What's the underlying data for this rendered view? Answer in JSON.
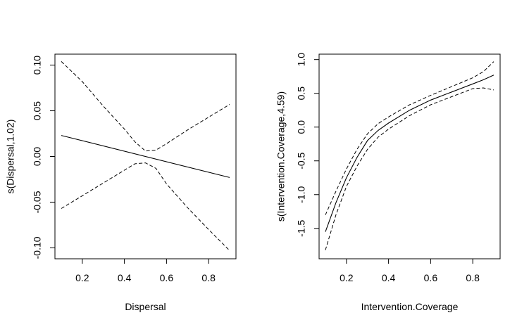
{
  "chart_data": [
    {
      "type": "line",
      "xlabel": "Dispersal",
      "ylabel": "s(Dispersal,1.02)",
      "xlim": [
        0.07,
        0.93
      ],
      "ylim": [
        -0.112,
        0.112
      ],
      "xticks": [
        0.2,
        0.4,
        0.6,
        0.8
      ],
      "xtick_labels": [
        "0.2",
        "0.4",
        "0.6",
        "0.8"
      ],
      "yticks": [
        -0.1,
        -0.05,
        0.0,
        0.05,
        0.1
      ],
      "ytick_labels": [
        "-0.10",
        "-0.05",
        "0.00",
        "0.05",
        "0.10"
      ],
      "series": [
        {
          "style": "solid",
          "x": [
            0.1,
            0.9
          ],
          "y": [
            0.023,
            -0.023
          ]
        },
        {
          "style": "dashed",
          "x": [
            0.1,
            0.2,
            0.3,
            0.4,
            0.45,
            0.5,
            0.55,
            0.6,
            0.7,
            0.8,
            0.9
          ],
          "y": [
            0.104,
            0.082,
            0.055,
            0.03,
            0.016,
            0.006,
            0.007,
            0.014,
            0.029,
            0.043,
            0.057
          ]
        },
        {
          "style": "dashed",
          "x": [
            0.1,
            0.2,
            0.3,
            0.4,
            0.45,
            0.5,
            0.55,
            0.6,
            0.7,
            0.8,
            0.9
          ],
          "y": [
            -0.057,
            -0.043,
            -0.029,
            -0.015,
            -0.008,
            -0.007,
            -0.013,
            -0.03,
            -0.056,
            -0.08,
            -0.103
          ]
        }
      ],
      "grid": false
    },
    {
      "type": "line",
      "xlabel": "Intervention.Coverage",
      "ylabel": "s(Intervention.Coverage,4.59)",
      "xlim": [
        0.07,
        0.93
      ],
      "ylim": [
        -1.95,
        1.08
      ],
      "xticks": [
        0.2,
        0.4,
        0.6,
        0.8
      ],
      "xtick_labels": [
        "0.2",
        "0.4",
        "0.6",
        "0.8"
      ],
      "yticks": [
        -1.5,
        -1.0,
        -0.5,
        0.0,
        0.5,
        1.0
      ],
      "ytick_labels": [
        "-1.5",
        "-1.0",
        "-0.5",
        "0.0",
        "0.5",
        "1.0"
      ],
      "series": [
        {
          "style": "solid",
          "x": [
            0.1,
            0.15,
            0.2,
            0.25,
            0.3,
            0.35,
            0.4,
            0.5,
            0.6,
            0.7,
            0.8,
            0.85,
            0.9
          ],
          "y": [
            -1.55,
            -1.12,
            -0.75,
            -0.45,
            -0.2,
            -0.05,
            0.06,
            0.25,
            0.4,
            0.52,
            0.64,
            0.7,
            0.77
          ]
        },
        {
          "style": "dashed",
          "x": [
            0.1,
            0.15,
            0.2,
            0.25,
            0.3,
            0.35,
            0.4,
            0.5,
            0.6,
            0.7,
            0.8,
            0.85,
            0.9
          ],
          "y": [
            -1.3,
            -0.95,
            -0.62,
            -0.33,
            -0.1,
            0.05,
            0.15,
            0.33,
            0.47,
            0.6,
            0.73,
            0.82,
            0.97
          ]
        },
        {
          "style": "dashed",
          "x": [
            0.1,
            0.15,
            0.2,
            0.25,
            0.3,
            0.35,
            0.4,
            0.5,
            0.6,
            0.7,
            0.8,
            0.85,
            0.9
          ],
          "y": [
            -1.82,
            -1.3,
            -0.88,
            -0.58,
            -0.33,
            -0.15,
            -0.03,
            0.17,
            0.33,
            0.45,
            0.57,
            0.58,
            0.55
          ]
        }
      ],
      "grid": false
    }
  ]
}
